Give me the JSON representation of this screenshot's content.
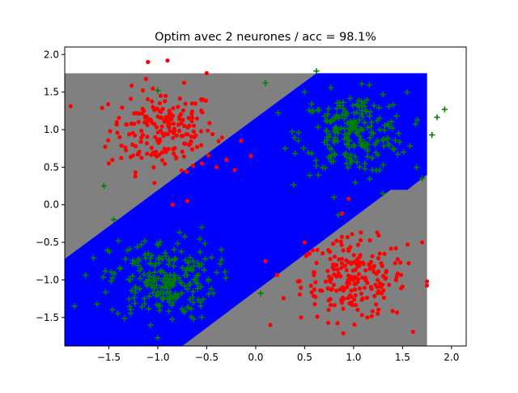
{
  "chart_data": {
    "type": "scatter",
    "title": "Optim avec 2 neurones / acc = 98.1%",
    "xlabel": "",
    "ylabel": "",
    "xlim": [
      -1.95,
      2.15
    ],
    "ylim": [
      -1.88,
      2.1
    ],
    "xticks": [
      -1.5,
      -1.0,
      -0.5,
      0.0,
      0.5,
      1.0,
      1.5,
      2.0
    ],
    "xtick_labels": [
      "−1.5",
      "−1.0",
      "−0.5",
      "0.0",
      "0.5",
      "1.0",
      "1.5",
      "2.0"
    ],
    "yticks": [
      -1.5,
      -1.0,
      -0.5,
      0.0,
      0.5,
      1.0,
      1.5,
      2.0
    ],
    "ytick_labels": [
      "−1.5",
      "−1.0",
      "−0.5",
      "0.0",
      "0.5",
      "1.0",
      "1.5",
      "2.0"
    ],
    "grid": false,
    "legend": "none",
    "decision_regions": {
      "grid_extent": {
        "x": [
          -1.95,
          1.75
        ],
        "y": [
          -1.88,
          1.75
        ]
      },
      "class_colors": {
        "gray": "#808080",
        "blue": "#0000ff"
      },
      "blue_band_upper_boundary": [
        [
          -1.95,
          -0.72
        ],
        [
          0.62,
          1.75
        ]
      ],
      "blue_band_lower_boundary": [
        [
          -0.75,
          -1.88
        ],
        [
          1.38,
          0.2
        ],
        [
          1.55,
          0.2
        ],
        [
          1.75,
          0.4
        ]
      ]
    },
    "series": [
      {
        "marker": "dot",
        "color": "#ff0000",
        "clusters": [
          {
            "center": [
              -0.95,
              1.0
            ],
            "spread": 0.27,
            "count": 200
          },
          {
            "center": [
              1.0,
              -1.0
            ],
            "spread": 0.27,
            "count": 220
          }
        ],
        "outliers": [
          [
            -1.1,
            1.9
          ],
          [
            -0.9,
            1.92
          ],
          [
            -0.5,
            1.75
          ],
          [
            -0.65,
            1.35
          ],
          [
            -0.15,
            0.85
          ],
          [
            -0.3,
            0.6
          ],
          [
            -0.55,
            0.55
          ],
          [
            -0.4,
            0.5
          ],
          [
            -1.5,
            0.55
          ],
          [
            -0.7,
            0.05
          ],
          [
            -0.85,
            0.0
          ],
          [
            0.1,
            -0.75
          ],
          [
            0.6,
            -0.9
          ],
          [
            0.95,
            0.08
          ],
          [
            0.5,
            -0.5
          ],
          [
            -0.05,
            0.65
          ],
          [
            1.75,
            -1.02
          ],
          [
            0.15,
            -1.6
          ],
          [
            0.55,
            -0.65
          ],
          [
            1.7,
            -0.5
          ]
        ]
      },
      {
        "marker": "plus",
        "color": "#007f00",
        "clusters": [
          {
            "center": [
              1.0,
              0.95
            ],
            "spread": 0.27,
            "count": 230
          },
          {
            "center": [
              -0.95,
              -1.0
            ],
            "spread": 0.27,
            "count": 230
          }
        ],
        "outliers": [
          [
            0.1,
            1.62
          ],
          [
            0.62,
            1.78
          ],
          [
            1.93,
            1.27
          ],
          [
            1.8,
            0.93
          ],
          [
            -1.55,
            0.25
          ],
          [
            0.05,
            -1.18
          ],
          [
            -1.0,
            1.52
          ],
          [
            0.8,
            0.1
          ],
          [
            -0.55,
            -0.3
          ],
          [
            0.3,
            0.75
          ],
          [
            -1.45,
            -0.2
          ],
          [
            -1.85,
            -1.35
          ],
          [
            1.7,
            0.35
          ],
          [
            0.5,
            1.5
          ],
          [
            -0.35,
            -0.6
          ],
          [
            1.3,
            0.15
          ]
        ]
      }
    ]
  }
}
